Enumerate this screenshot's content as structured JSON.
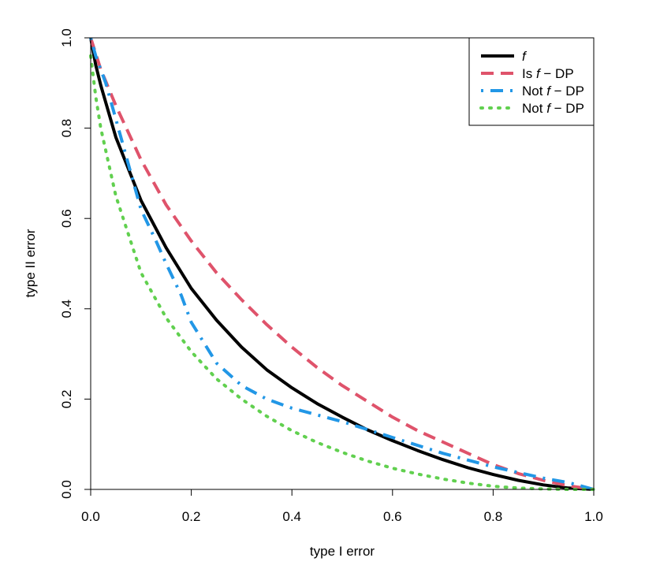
{
  "chart_data": {
    "type": "line",
    "xlabel": "type I error",
    "ylabel": "type II error",
    "xlim": [
      0,
      1
    ],
    "ylim": [
      0,
      1
    ],
    "xticks": [
      "0.0",
      "0.2",
      "0.4",
      "0.6",
      "0.8",
      "1.0"
    ],
    "yticks": [
      "0.0",
      "0.2",
      "0.4",
      "0.6",
      "0.8",
      "1.0"
    ],
    "grid": false,
    "legend_position": "top-right",
    "series": [
      {
        "name": "f",
        "legend_parts": [
          "",
          "f",
          ""
        ],
        "color": "#000000",
        "style": "solid",
        "x": [
          0,
          0.01,
          0.02,
          0.05,
          0.1,
          0.15,
          0.2,
          0.25,
          0.3,
          0.35,
          0.4,
          0.45,
          0.5,
          0.55,
          0.6,
          0.65,
          0.7,
          0.75,
          0.8,
          0.85,
          0.9,
          0.95,
          1.0
        ],
        "y": [
          1.0,
          0.94,
          0.895,
          0.78,
          0.64,
          0.535,
          0.445,
          0.375,
          0.315,
          0.265,
          0.225,
          0.19,
          0.16,
          0.132,
          0.108,
          0.086,
          0.066,
          0.048,
          0.033,
          0.02,
          0.01,
          0.003,
          0
        ]
      },
      {
        "name": "Is f − DP",
        "legend_parts": [
          "Is ",
          "f",
          " − DP"
        ],
        "color": "#DF536B",
        "style": "dashed",
        "x": [
          0,
          0.02,
          0.05,
          0.1,
          0.15,
          0.2,
          0.25,
          0.3,
          0.35,
          0.4,
          0.45,
          0.5,
          0.55,
          0.6,
          0.65,
          0.7,
          0.75,
          0.8,
          0.85,
          0.9,
          0.95,
          1.0
        ],
        "y": [
          1.0,
          0.93,
          0.85,
          0.73,
          0.63,
          0.55,
          0.48,
          0.42,
          0.365,
          0.315,
          0.27,
          0.23,
          0.195,
          0.16,
          0.13,
          0.105,
          0.08,
          0.055,
          0.035,
          0.02,
          0.008,
          0
        ]
      },
      {
        "name": "Not f − DP",
        "legend_parts": [
          "Not ",
          "f",
          " − DP"
        ],
        "color": "#2297E6",
        "style": "dotdash",
        "x": [
          0,
          0.01,
          0.03,
          0.05,
          0.08,
          0.1,
          0.13,
          0.15,
          0.18,
          0.2,
          0.25,
          0.3,
          0.35,
          0.4,
          0.5,
          0.6,
          0.7,
          0.8,
          0.9,
          0.95,
          1.0
        ],
        "y": [
          1.0,
          0.96,
          0.9,
          0.82,
          0.7,
          0.62,
          0.55,
          0.5,
          0.43,
          0.37,
          0.28,
          0.23,
          0.2,
          0.18,
          0.15,
          0.115,
          0.08,
          0.05,
          0.025,
          0.015,
          0
        ]
      },
      {
        "name": "Not f − DP",
        "legend_parts": [
          "Not ",
          "f",
          " − DP"
        ],
        "color": "#61D04F",
        "style": "dotted",
        "x": [
          0,
          0.01,
          0.02,
          0.05,
          0.1,
          0.15,
          0.2,
          0.25,
          0.3,
          0.35,
          0.4,
          0.45,
          0.5,
          0.55,
          0.6,
          0.65,
          0.7,
          0.75,
          0.8,
          0.85,
          0.9,
          0.95,
          1.0
        ],
        "y": [
          0.96,
          0.87,
          0.8,
          0.65,
          0.48,
          0.38,
          0.305,
          0.245,
          0.2,
          0.162,
          0.13,
          0.104,
          0.082,
          0.063,
          0.047,
          0.034,
          0.023,
          0.014,
          0.007,
          0.003,
          0.001,
          0,
          0
        ]
      }
    ]
  }
}
